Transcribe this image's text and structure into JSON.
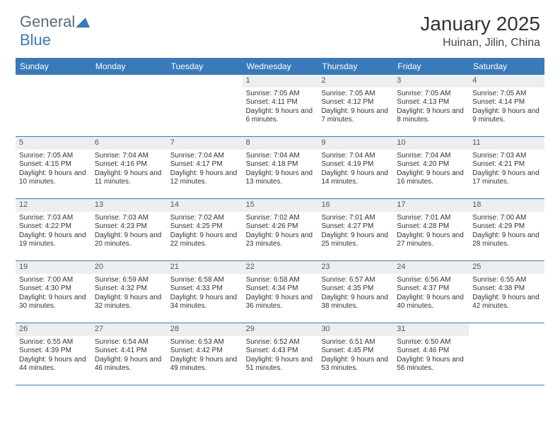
{
  "logo": {
    "part1": "General",
    "part2": "Blue"
  },
  "month_title": "January 2025",
  "location": "Huinan, Jilin, China",
  "colors": {
    "header_bg": "#3a7ab8",
    "header_text": "#ffffff",
    "daynum_bg": "#eceff1",
    "border": "#3a7ab8",
    "logo_gray": "#5a6b7a",
    "logo_blue": "#3a7ab8"
  },
  "day_names": [
    "Sunday",
    "Monday",
    "Tuesday",
    "Wednesday",
    "Thursday",
    "Friday",
    "Saturday"
  ],
  "weeks": [
    [
      {
        "n": "",
        "sr": "",
        "ss": "",
        "dl": ""
      },
      {
        "n": "",
        "sr": "",
        "ss": "",
        "dl": ""
      },
      {
        "n": "",
        "sr": "",
        "ss": "",
        "dl": ""
      },
      {
        "n": "1",
        "sr": "Sunrise: 7:05 AM",
        "ss": "Sunset: 4:11 PM",
        "dl": "Daylight: 9 hours and 6 minutes."
      },
      {
        "n": "2",
        "sr": "Sunrise: 7:05 AM",
        "ss": "Sunset: 4:12 PM",
        "dl": "Daylight: 9 hours and 7 minutes."
      },
      {
        "n": "3",
        "sr": "Sunrise: 7:05 AM",
        "ss": "Sunset: 4:13 PM",
        "dl": "Daylight: 9 hours and 8 minutes."
      },
      {
        "n": "4",
        "sr": "Sunrise: 7:05 AM",
        "ss": "Sunset: 4:14 PM",
        "dl": "Daylight: 9 hours and 9 minutes."
      }
    ],
    [
      {
        "n": "5",
        "sr": "Sunrise: 7:05 AM",
        "ss": "Sunset: 4:15 PM",
        "dl": "Daylight: 9 hours and 10 minutes."
      },
      {
        "n": "6",
        "sr": "Sunrise: 7:04 AM",
        "ss": "Sunset: 4:16 PM",
        "dl": "Daylight: 9 hours and 11 minutes."
      },
      {
        "n": "7",
        "sr": "Sunrise: 7:04 AM",
        "ss": "Sunset: 4:17 PM",
        "dl": "Daylight: 9 hours and 12 minutes."
      },
      {
        "n": "8",
        "sr": "Sunrise: 7:04 AM",
        "ss": "Sunset: 4:18 PM",
        "dl": "Daylight: 9 hours and 13 minutes."
      },
      {
        "n": "9",
        "sr": "Sunrise: 7:04 AM",
        "ss": "Sunset: 4:19 PM",
        "dl": "Daylight: 9 hours and 14 minutes."
      },
      {
        "n": "10",
        "sr": "Sunrise: 7:04 AM",
        "ss": "Sunset: 4:20 PM",
        "dl": "Daylight: 9 hours and 16 minutes."
      },
      {
        "n": "11",
        "sr": "Sunrise: 7:03 AM",
        "ss": "Sunset: 4:21 PM",
        "dl": "Daylight: 9 hours and 17 minutes."
      }
    ],
    [
      {
        "n": "12",
        "sr": "Sunrise: 7:03 AM",
        "ss": "Sunset: 4:22 PM",
        "dl": "Daylight: 9 hours and 19 minutes."
      },
      {
        "n": "13",
        "sr": "Sunrise: 7:03 AM",
        "ss": "Sunset: 4:23 PM",
        "dl": "Daylight: 9 hours and 20 minutes."
      },
      {
        "n": "14",
        "sr": "Sunrise: 7:02 AM",
        "ss": "Sunset: 4:25 PM",
        "dl": "Daylight: 9 hours and 22 minutes."
      },
      {
        "n": "15",
        "sr": "Sunrise: 7:02 AM",
        "ss": "Sunset: 4:26 PM",
        "dl": "Daylight: 9 hours and 23 minutes."
      },
      {
        "n": "16",
        "sr": "Sunrise: 7:01 AM",
        "ss": "Sunset: 4:27 PM",
        "dl": "Daylight: 9 hours and 25 minutes."
      },
      {
        "n": "17",
        "sr": "Sunrise: 7:01 AM",
        "ss": "Sunset: 4:28 PM",
        "dl": "Daylight: 9 hours and 27 minutes."
      },
      {
        "n": "18",
        "sr": "Sunrise: 7:00 AM",
        "ss": "Sunset: 4:29 PM",
        "dl": "Daylight: 9 hours and 28 minutes."
      }
    ],
    [
      {
        "n": "19",
        "sr": "Sunrise: 7:00 AM",
        "ss": "Sunset: 4:30 PM",
        "dl": "Daylight: 9 hours and 30 minutes."
      },
      {
        "n": "20",
        "sr": "Sunrise: 6:59 AM",
        "ss": "Sunset: 4:32 PM",
        "dl": "Daylight: 9 hours and 32 minutes."
      },
      {
        "n": "21",
        "sr": "Sunrise: 6:58 AM",
        "ss": "Sunset: 4:33 PM",
        "dl": "Daylight: 9 hours and 34 minutes."
      },
      {
        "n": "22",
        "sr": "Sunrise: 6:58 AM",
        "ss": "Sunset: 4:34 PM",
        "dl": "Daylight: 9 hours and 36 minutes."
      },
      {
        "n": "23",
        "sr": "Sunrise: 6:57 AM",
        "ss": "Sunset: 4:35 PM",
        "dl": "Daylight: 9 hours and 38 minutes."
      },
      {
        "n": "24",
        "sr": "Sunrise: 6:56 AM",
        "ss": "Sunset: 4:37 PM",
        "dl": "Daylight: 9 hours and 40 minutes."
      },
      {
        "n": "25",
        "sr": "Sunrise: 6:55 AM",
        "ss": "Sunset: 4:38 PM",
        "dl": "Daylight: 9 hours and 42 minutes."
      }
    ],
    [
      {
        "n": "26",
        "sr": "Sunrise: 6:55 AM",
        "ss": "Sunset: 4:39 PM",
        "dl": "Daylight: 9 hours and 44 minutes."
      },
      {
        "n": "27",
        "sr": "Sunrise: 6:54 AM",
        "ss": "Sunset: 4:41 PM",
        "dl": "Daylight: 9 hours and 46 minutes."
      },
      {
        "n": "28",
        "sr": "Sunrise: 6:53 AM",
        "ss": "Sunset: 4:42 PM",
        "dl": "Daylight: 9 hours and 49 minutes."
      },
      {
        "n": "29",
        "sr": "Sunrise: 6:52 AM",
        "ss": "Sunset: 4:43 PM",
        "dl": "Daylight: 9 hours and 51 minutes."
      },
      {
        "n": "30",
        "sr": "Sunrise: 6:51 AM",
        "ss": "Sunset: 4:45 PM",
        "dl": "Daylight: 9 hours and 53 minutes."
      },
      {
        "n": "31",
        "sr": "Sunrise: 6:50 AM",
        "ss": "Sunset: 4:46 PM",
        "dl": "Daylight: 9 hours and 56 minutes."
      },
      {
        "n": "",
        "sr": "",
        "ss": "",
        "dl": ""
      }
    ]
  ]
}
